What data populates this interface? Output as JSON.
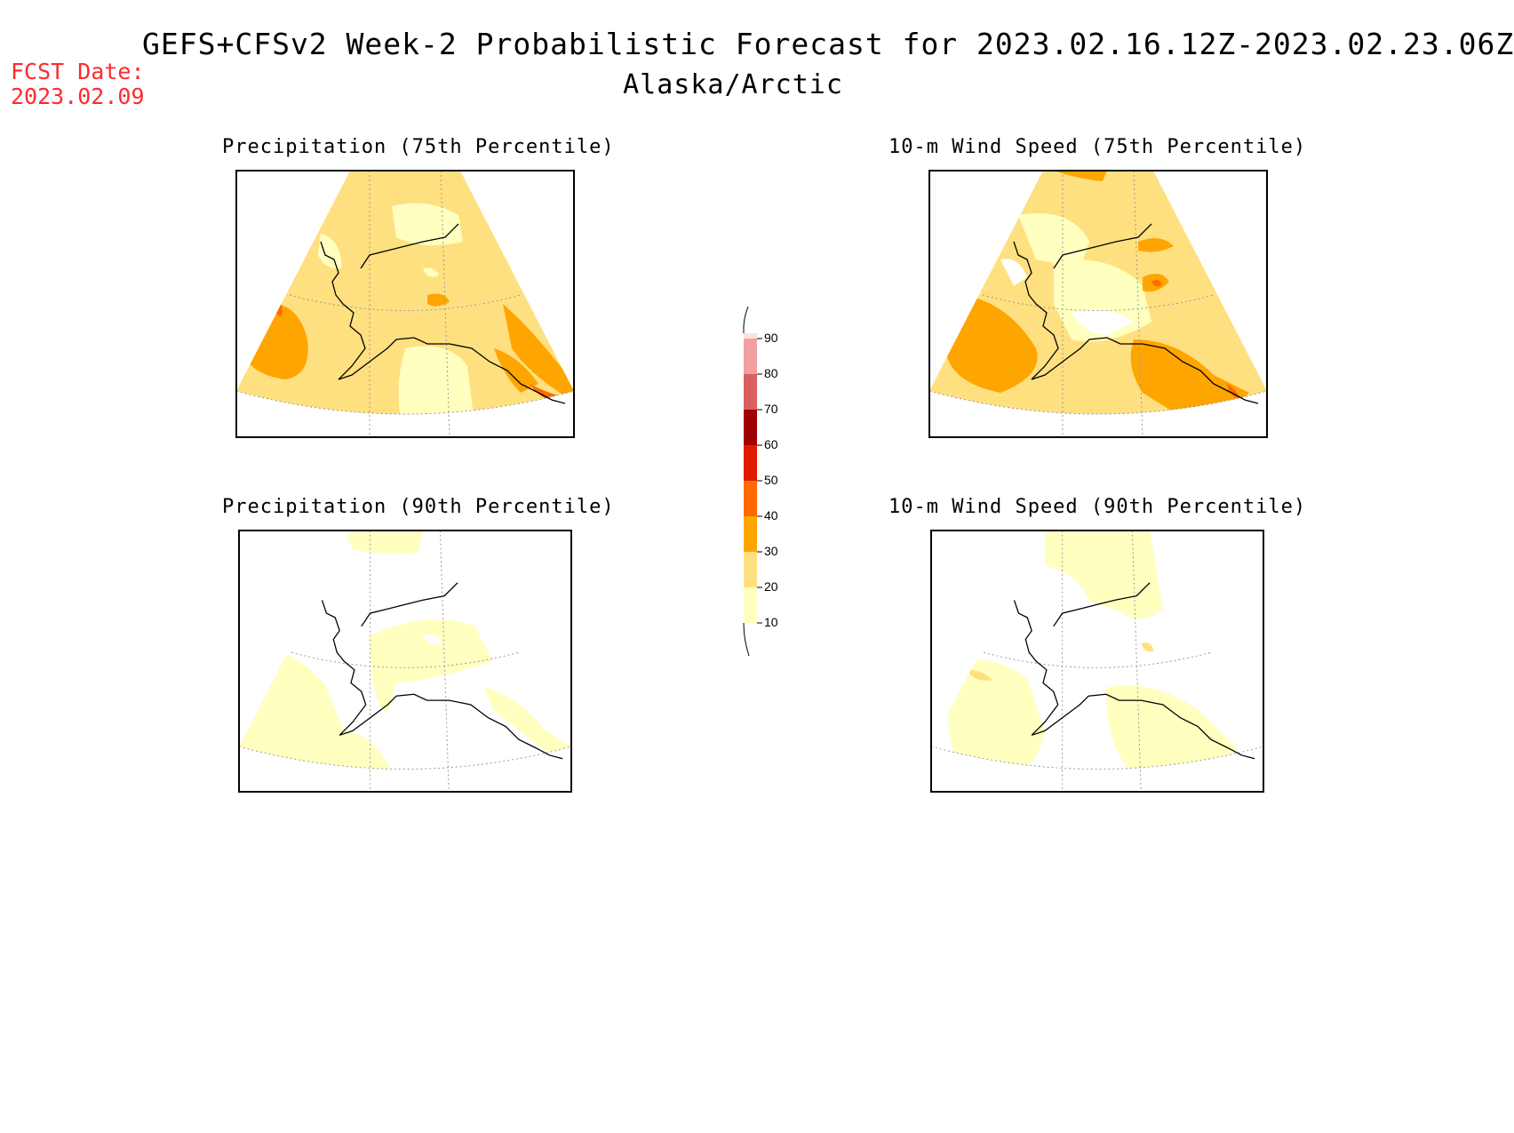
{
  "header": {
    "title": "GEFS+CFSv2 Week-2 Probabilistic Forecast for 2023.02.16.12Z-2023.02.23.06Z",
    "region": "Alaska/Arctic",
    "fcst_date_label": "FCST Date:",
    "fcst_date_value": "2023.02.09"
  },
  "panels": [
    {
      "id": "precip75",
      "title": "Precipitation (75th Percentile)"
    },
    {
      "id": "wind75",
      "title": "10-m Wind Speed (75th Percentile)"
    },
    {
      "id": "precip90",
      "title": "Precipitation (90th Percentile)"
    },
    {
      "id": "wind90",
      "title": "10-m Wind Speed (90th Percentile)"
    }
  ],
  "colorbar": {
    "labels": [
      "10",
      "20",
      "30",
      "40",
      "50",
      "60",
      "70",
      "80",
      "90"
    ],
    "colors": [
      "#ffffc0",
      "#ffe080",
      "#ffa500",
      "#ff6a00",
      "#e01a00",
      "#a00000",
      "#d86060",
      "#f0a0a0",
      "#ffe0e0"
    ]
  },
  "colors": {
    "c10": "#ffffc0",
    "c20": "#ffe080",
    "c30": "#ffa500",
    "c40": "#ff6a00",
    "c50": "#e01a00",
    "fcst_text": "#ff2a2a"
  }
}
